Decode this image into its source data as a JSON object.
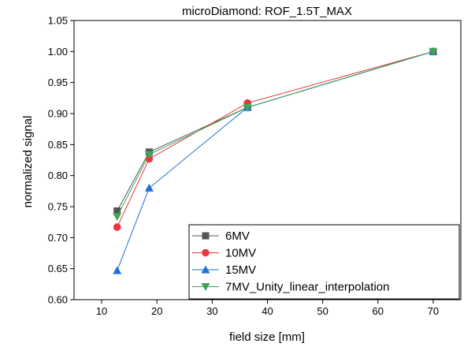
{
  "chart_data": {
    "type": "line",
    "title": "microDiamond: ROF_1.5T_MAX",
    "xlabel": "field size [mm]",
    "ylabel": "normalized signal",
    "xlim": [
      5,
      75
    ],
    "ylim": [
      0.6,
      1.05
    ],
    "xticks": [
      "10",
      "20",
      "30",
      "40",
      "50",
      "60",
      "70"
    ],
    "yticks": [
      "0.60",
      "0.65",
      "0.70",
      "0.75",
      "0.80",
      "0.85",
      "0.90",
      "0.95",
      "1.00",
      "1.05"
    ],
    "grid": false,
    "legend_position": "bottom-right",
    "series": [
      {
        "name": "6MV",
        "color": "#555555",
        "marker": "square",
        "x": [
          12.8,
          18.6,
          36.4,
          70
        ],
        "values": [
          0.743,
          0.838,
          0.91,
          1.0
        ]
      },
      {
        "name": "10MV",
        "color": "#e8363a",
        "marker": "circle",
        "x": [
          12.8,
          18.6,
          36.4,
          70
        ],
        "values": [
          0.717,
          0.827,
          0.917,
          1.0
        ]
      },
      {
        "name": "15MV",
        "color": "#1f6fd8",
        "marker": "triangle-up",
        "x": [
          12.8,
          18.6,
          36.4,
          70
        ],
        "values": [
          0.647,
          0.78,
          0.91,
          1.0
        ]
      },
      {
        "name": "7MV_Unity_linear_interpolation",
        "color": "#3ea55a",
        "marker": "triangle-down",
        "x": [
          12.8,
          18.6,
          36.4,
          70
        ],
        "values": [
          0.734,
          0.834,
          0.91,
          1.0
        ]
      }
    ]
  }
}
